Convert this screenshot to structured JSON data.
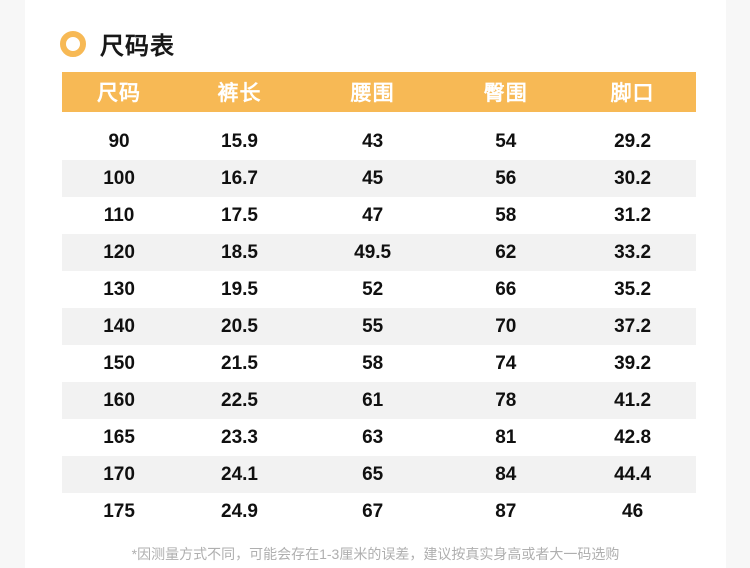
{
  "page": {
    "title": "尺码表",
    "note": "*因测量方式不同，可能会存在1-3厘米的误差，建议按真实身高或者大一码选购"
  },
  "icons": {
    "title_bullet": "ring-icon"
  },
  "colors": {
    "accent": "#F7B955",
    "stripe": "#F2F2F2",
    "page_background": "#F7F7F7",
    "header_text": "#FFFFFF",
    "note_text": "#AFAFAF"
  },
  "table": {
    "columns": [
      "尺码",
      "裤长",
      "腰围",
      "臀围",
      "脚口"
    ],
    "rows": [
      [
        "90",
        "15.9",
        "43",
        "54",
        "29.2"
      ],
      [
        "100",
        "16.7",
        "45",
        "56",
        "30.2"
      ],
      [
        "110",
        "17.5",
        "47",
        "58",
        "31.2"
      ],
      [
        "120",
        "18.5",
        "49.5",
        "62",
        "33.2"
      ],
      [
        "130",
        "19.5",
        "52",
        "66",
        "35.2"
      ],
      [
        "140",
        "20.5",
        "55",
        "70",
        "37.2"
      ],
      [
        "150",
        "21.5",
        "58",
        "74",
        "39.2"
      ],
      [
        "160",
        "22.5",
        "61",
        "78",
        "41.2"
      ],
      [
        "165",
        "23.3",
        "63",
        "81",
        "42.8"
      ],
      [
        "170",
        "24.1",
        "65",
        "84",
        "44.4"
      ],
      [
        "175",
        "24.9",
        "67",
        "87",
        "46"
      ]
    ]
  }
}
